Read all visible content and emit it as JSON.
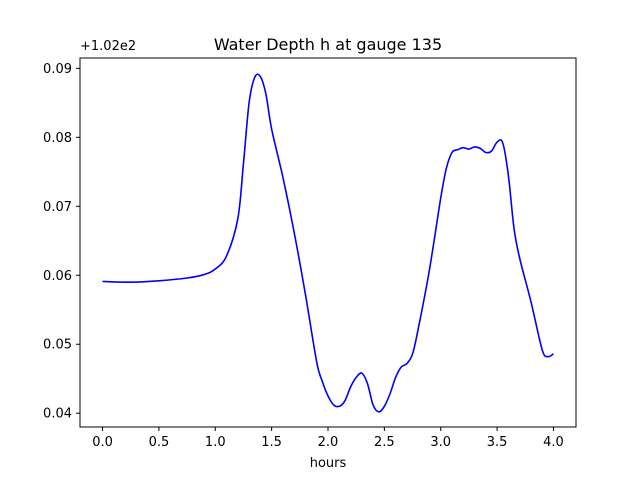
{
  "chart_data": {
    "type": "line",
    "title": "Water Depth h at gauge 135",
    "xlabel": "hours",
    "ylabel": "",
    "offset_label": "+1.02e2",
    "xlim": [
      -0.2,
      4.2
    ],
    "ylim": [
      0.038,
      0.0915
    ],
    "xticks": [
      0.0,
      0.5,
      1.0,
      1.5,
      2.0,
      2.5,
      3.0,
      3.5,
      4.0
    ],
    "xtick_labels": [
      "0.0",
      "0.5",
      "1.0",
      "1.5",
      "2.0",
      "2.5",
      "3.0",
      "3.5",
      "4.0"
    ],
    "yticks": [
      0.04,
      0.05,
      0.06,
      0.07,
      0.08,
      0.09
    ],
    "ytick_labels": [
      "0.04",
      "0.05",
      "0.06",
      "0.07",
      "0.08",
      "0.09"
    ],
    "grid": false,
    "series": [
      {
        "color": "#0000ff",
        "x": [
          0.0,
          0.25,
          0.5,
          0.75,
          0.9,
          1.0,
          1.1,
          1.2,
          1.25,
          1.3,
          1.35,
          1.4,
          1.45,
          1.5,
          1.6,
          1.7,
          1.8,
          1.9,
          1.95,
          2.0,
          2.05,
          2.1,
          2.15,
          2.2,
          2.25,
          2.3,
          2.35,
          2.4,
          2.45,
          2.5,
          2.55,
          2.6,
          2.65,
          2.7,
          2.75,
          2.8,
          2.9,
          3.0,
          3.05,
          3.1,
          3.15,
          3.2,
          3.25,
          3.3,
          3.35,
          3.4,
          3.45,
          3.5,
          3.55,
          3.6,
          3.65,
          3.7,
          3.8,
          3.9,
          3.95,
          4.0
        ],
        "y": [
          0.0591,
          0.059,
          0.0592,
          0.0596,
          0.0601,
          0.0609,
          0.0628,
          0.0682,
          0.0762,
          0.085,
          0.0887,
          0.0888,
          0.0862,
          0.0812,
          0.0742,
          0.0662,
          0.0572,
          0.0474,
          0.0446,
          0.0425,
          0.0412,
          0.041,
          0.0418,
          0.0438,
          0.0452,
          0.0458,
          0.0443,
          0.0412,
          0.0402,
          0.041,
          0.0428,
          0.0452,
          0.0467,
          0.0472,
          0.0486,
          0.0522,
          0.0608,
          0.0712,
          0.0755,
          0.0778,
          0.0782,
          0.0785,
          0.0783,
          0.0786,
          0.0784,
          0.0778,
          0.078,
          0.0793,
          0.0792,
          0.0745,
          0.0668,
          0.0625,
          0.0562,
          0.0492,
          0.0482,
          0.0486
        ]
      }
    ]
  }
}
